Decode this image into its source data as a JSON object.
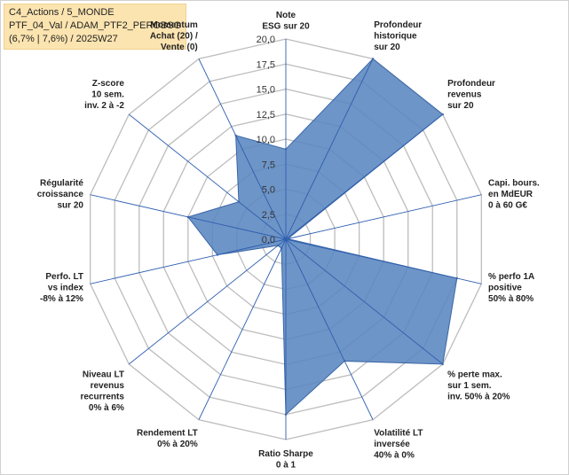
{
  "info_box": {
    "line1": "C4_Actions / 5_MONDE",
    "line2": "PTF_04_Val / ADAM_PTF2_PEROBSG",
    "line3": "(6,7% | 7,6%) / 2025W27"
  },
  "colors": {
    "fill": "#5a86bf",
    "stroke": "#3a66a8",
    "spoke": "#2e5fb0",
    "grid": "#bdbdbd"
  },
  "chart_data": {
    "type": "radar",
    "title": "",
    "rmin": 0,
    "rmax": 20,
    "grid_step": 2.5,
    "tick_labels": [
      "0,0",
      "2,5",
      "5,0",
      "7,5",
      "10,0",
      "12,5",
      "15,0",
      "17,5",
      "20,0"
    ],
    "axes": [
      {
        "label": [
          "Note",
          "ESG sur 20"
        ],
        "value": 9
      },
      {
        "label": [
          "Profondeur",
          "historique",
          "sur 20"
        ],
        "value": 20
      },
      {
        "label": [
          "Profondeur",
          "revenus",
          "sur 20"
        ],
        "value": 20
      },
      {
        "label": [
          "Capi. bours.",
          "en MdEUR",
          "0 à 60 G€"
        ],
        "value": 0.2
      },
      {
        "label": [
          "% perfo 1A",
          "positive",
          "50% à 80%"
        ],
        "value": 17.5
      },
      {
        "label": [
          "% perte max.",
          "sur 1 sem.",
          "inv. 50% à 20%"
        ],
        "value": 20
      },
      {
        "label": [
          "Volatilité LT",
          "inversée",
          "40% à 0%"
        ],
        "value": 13.5
      },
      {
        "label": [
          "Ratio Sharpe",
          "0 à 1"
        ],
        "value": 17.5
      },
      {
        "label": [
          "Rendement LT",
          "0% à 20%"
        ],
        "value": 1
      },
      {
        "label": [
          "Niveau LT",
          "revenus",
          "recurrents",
          "0% à 6%"
        ],
        "value": 1
      },
      {
        "label": [
          "Perfo. LT",
          "vs index",
          "-8% à 12%"
        ],
        "value": 7
      },
      {
        "label": [
          "Régularité",
          "croissance",
          "sur 20"
        ],
        "value": 10
      },
      {
        "label": [
          "Z-score",
          "10 sem.",
          "inv. 2 à -2"
        ],
        "value": 6
      },
      {
        "label": [
          "Momentum",
          "Achat (20) /",
          "Vente (0)"
        ],
        "value": 11.5
      }
    ]
  }
}
